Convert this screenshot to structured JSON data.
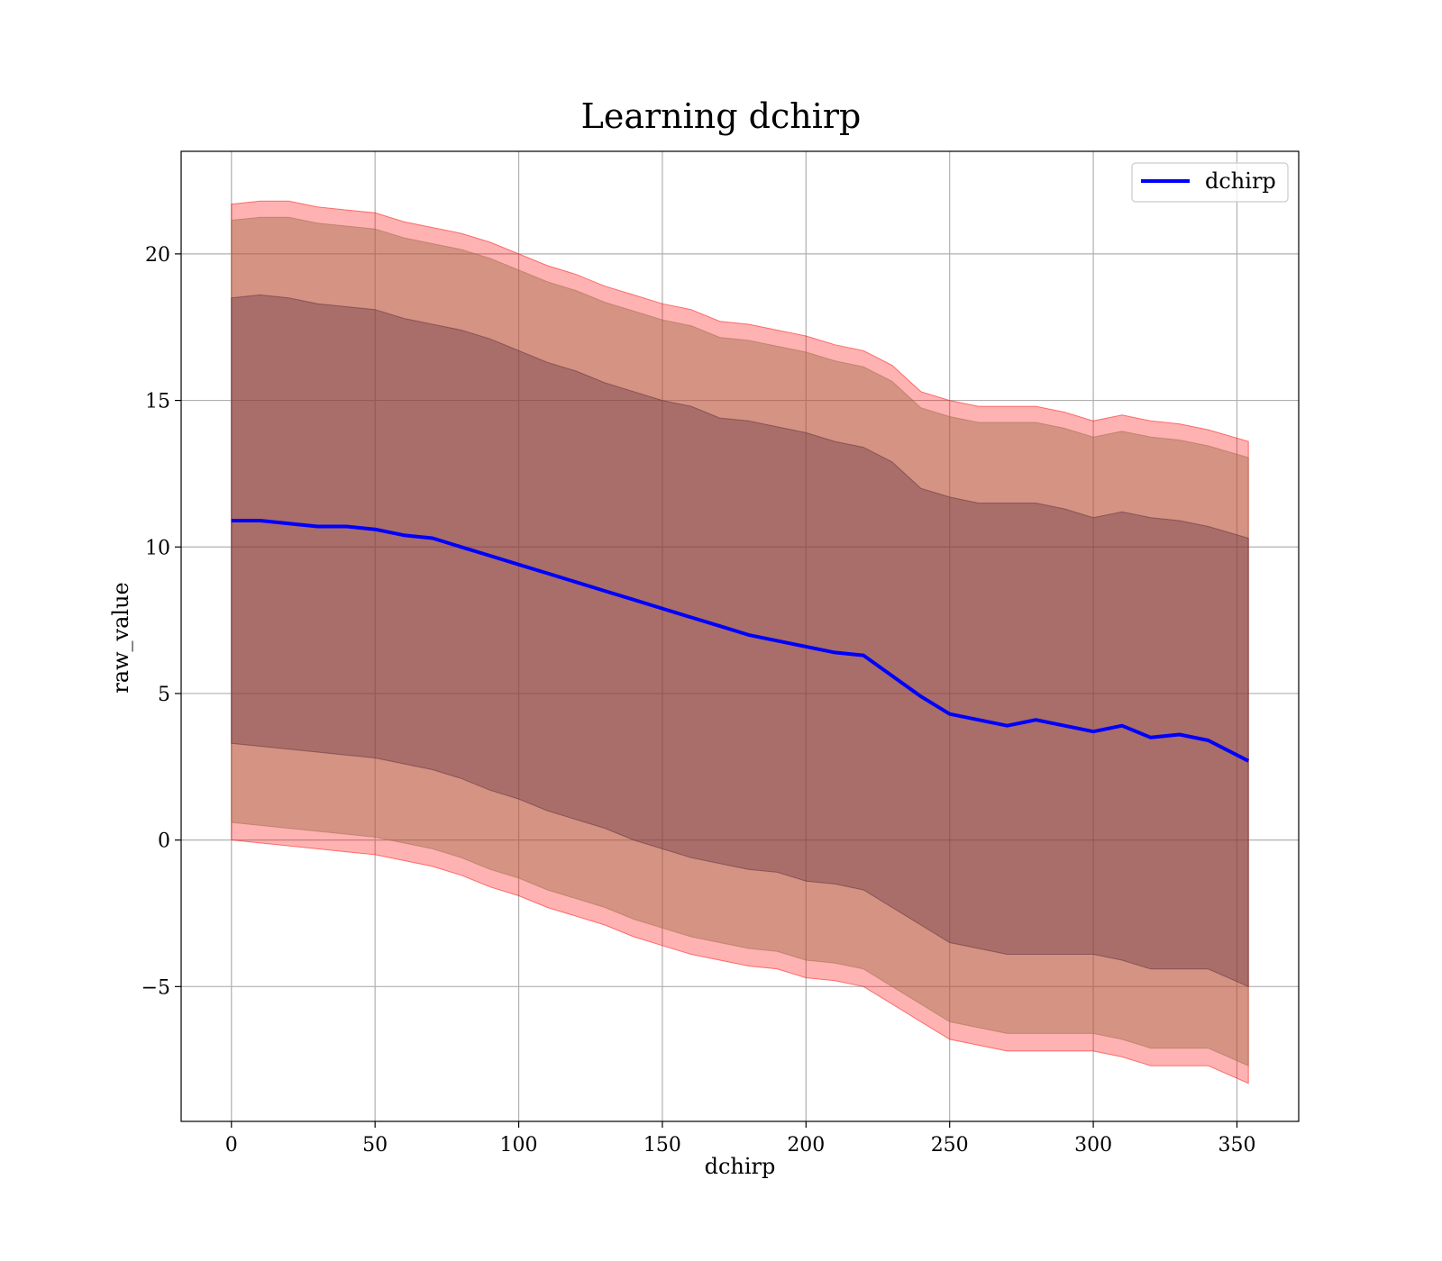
{
  "chart_data": {
    "type": "line",
    "title": "Learning dchirp",
    "xlabel": "dchirp",
    "ylabel": "raw_value",
    "xlim": [
      -17.5,
      371.5
    ],
    "ylim": [
      -9.6,
      23.5
    ],
    "xticks": [
      0,
      50,
      100,
      150,
      200,
      250,
      300,
      350
    ],
    "yticks": [
      -5,
      0,
      5,
      10,
      15,
      20
    ],
    "ytick_labels": [
      "−5",
      "0",
      "5",
      "10",
      "15",
      "20"
    ],
    "grid": true,
    "legend_position": "top-right",
    "x": [
      0,
      10,
      20,
      30,
      40,
      50,
      60,
      70,
      80,
      90,
      100,
      110,
      120,
      130,
      140,
      150,
      160,
      170,
      180,
      190,
      200,
      210,
      220,
      230,
      240,
      250,
      260,
      270,
      280,
      290,
      300,
      310,
      320,
      330,
      340,
      354
    ],
    "series": [
      {
        "name": "dchirp",
        "color": "#0000ff",
        "values": [
          10.9,
          10.9,
          10.8,
          10.7,
          10.7,
          10.6,
          10.4,
          10.3,
          10.0,
          9.7,
          9.4,
          9.1,
          8.8,
          8.5,
          8.2,
          7.9,
          7.6,
          7.3,
          7.0,
          6.8,
          6.6,
          6.4,
          6.3,
          5.6,
          4.9,
          4.3,
          4.1,
          3.9,
          4.1,
          3.9,
          3.7,
          3.9,
          3.5,
          3.6,
          3.4,
          2.7
        ]
      }
    ],
    "bands": [
      {
        "color": "#ff0000",
        "opacity": 0.3,
        "lower": [
          0.0,
          -0.1,
          -0.2,
          -0.3,
          -0.4,
          -0.5,
          -0.7,
          -0.9,
          -1.2,
          -1.6,
          -1.9,
          -2.3,
          -2.6,
          -2.9,
          -3.3,
          -3.6,
          -3.9,
          -4.1,
          -4.3,
          -4.4,
          -4.7,
          -4.8,
          -5.0,
          -5.6,
          -6.2,
          -6.8,
          -7.0,
          -7.2,
          -7.2,
          -7.2,
          -7.2,
          -7.4,
          -7.7,
          -7.7,
          -7.7,
          -8.3
        ],
        "upper": [
          21.7,
          21.8,
          21.8,
          21.6,
          21.5,
          21.4,
          21.1,
          20.9,
          20.7,
          20.4,
          20.0,
          19.6,
          19.3,
          18.9,
          18.6,
          18.3,
          18.1,
          17.7,
          17.6,
          17.4,
          17.2,
          16.9,
          16.7,
          16.2,
          15.3,
          15.0,
          14.8,
          14.8,
          14.8,
          14.6,
          14.3,
          14.5,
          14.3,
          14.2,
          14.0,
          13.6
        ]
      },
      {
        "color": "#a06c4a",
        "opacity": 0.45,
        "lower": [
          0.6,
          0.5,
          0.4,
          0.3,
          0.2,
          0.1,
          -0.1,
          -0.3,
          -0.6,
          -1.0,
          -1.3,
          -1.7,
          -2.0,
          -2.3,
          -2.7,
          -3.0,
          -3.3,
          -3.5,
          -3.7,
          -3.8,
          -4.1,
          -4.2,
          -4.4,
          -5.0,
          -5.6,
          -6.2,
          -6.4,
          -6.6,
          -6.6,
          -6.6,
          -6.6,
          -6.8,
          -7.1,
          -7.1,
          -7.1,
          -7.7
        ]
      },
      {
        "color": "#5a2a3a",
        "opacity": 0.35,
        "lower": [
          3.3,
          3.2,
          3.1,
          3.0,
          2.9,
          2.8,
          2.6,
          2.4,
          2.1,
          1.7,
          1.4,
          1.0,
          0.7,
          0.4,
          0.0,
          -0.3,
          -0.6,
          -0.8,
          -1.0,
          -1.1,
          -1.4,
          -1.5,
          -1.7,
          -2.3,
          -2.9,
          -3.5,
          -3.7,
          -3.9,
          -3.9,
          -3.9,
          -3.9,
          -4.1,
          -4.4,
          -4.4,
          -4.4,
          -5.0
        ],
        "upper": [
          18.5,
          18.6,
          18.5,
          18.3,
          18.2,
          18.1,
          17.8,
          17.6,
          17.4,
          17.1,
          16.7,
          16.3,
          16.0,
          15.6,
          15.3,
          15.0,
          14.8,
          14.4,
          14.3,
          14.1,
          13.9,
          13.6,
          13.4,
          12.9,
          12.0,
          11.7,
          11.5,
          11.5,
          11.5,
          11.3,
          11.0,
          11.2,
          11.0,
          10.9,
          10.7,
          10.3
        ]
      }
    ]
  }
}
